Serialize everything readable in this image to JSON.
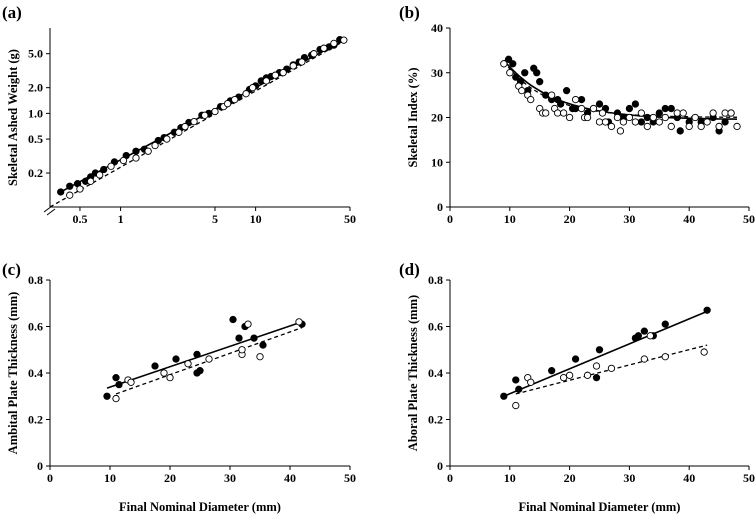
{
  "figure": {
    "shared_xlabel_bottom": "Final Nominal Diameter (mm)"
  },
  "chart_data": [
    {
      "panel": "(a)",
      "type": "scatter",
      "ylabel": "Skeletal Ashed Weight (g)",
      "xscale": "log",
      "yscale": "log",
      "xlim": [
        0.3,
        50
      ],
      "ylim": [
        0.08,
        10
      ],
      "xticks": [
        "0.5",
        "1",
        "5",
        "10",
        "50"
      ],
      "xtick_values": [
        0.5,
        1,
        5,
        10,
        50
      ],
      "yticks": [
        "0.2",
        "0.5",
        "1.0",
        "2.0",
        "5.0"
      ],
      "ytick_values": [
        0.2,
        0.5,
        1.0,
        2.0,
        5.0
      ],
      "trend_solid": [
        [
          0.36,
          0.12
        ],
        [
          45,
          7.2
        ]
      ],
      "trend_dashed": [
        [
          0.3,
          0.08
        ],
        [
          45,
          7.0
        ]
      ],
      "series": [
        {
          "marker": "filled",
          "points": [
            [
              0.36,
              0.12
            ],
            [
              0.42,
              0.14
            ],
            [
              0.48,
              0.15
            ],
            [
              0.55,
              0.16
            ],
            [
              0.6,
              0.18
            ],
            [
              0.65,
              0.2
            ],
            [
              0.75,
              0.22
            ],
            [
              0.9,
              0.27
            ],
            [
              1.1,
              0.32
            ],
            [
              1.3,
              0.36
            ],
            [
              1.5,
              0.38
            ],
            [
              1.9,
              0.48
            ],
            [
              2.1,
              0.52
            ],
            [
              2.5,
              0.6
            ],
            [
              2.8,
              0.68
            ],
            [
              3.2,
              0.78
            ],
            [
              4.0,
              0.95
            ],
            [
              4.5,
              1.0
            ],
            [
              5.5,
              1.2
            ],
            [
              6.5,
              1.4
            ],
            [
              7.5,
              1.55
            ],
            [
              9,
              1.9
            ],
            [
              10,
              2.1
            ],
            [
              11,
              2.4
            ],
            [
              12,
              2.6
            ],
            [
              13,
              2.7
            ],
            [
              15,
              3.0
            ],
            [
              17,
              3.3
            ],
            [
              19,
              3.7
            ],
            [
              21,
              4.0
            ],
            [
              23,
              4.5
            ],
            [
              26,
              4.8
            ],
            [
              30,
              5.6
            ],
            [
              35,
              6.0
            ],
            [
              38,
              6.3
            ],
            [
              42,
              7.3
            ]
          ]
        },
        {
          "marker": "open",
          "points": [
            [
              0.42,
              0.11
            ],
            [
              0.5,
              0.13
            ],
            [
              0.6,
              0.16
            ],
            [
              0.7,
              0.19
            ],
            [
              0.85,
              0.24
            ],
            [
              1.05,
              0.28
            ],
            [
              1.3,
              0.3
            ],
            [
              1.6,
              0.36
            ],
            [
              1.8,
              0.42
            ],
            [
              2.2,
              0.5
            ],
            [
              2.7,
              0.6
            ],
            [
              3.0,
              0.7
            ],
            [
              3.5,
              0.8
            ],
            [
              4.2,
              0.95
            ],
            [
              5.0,
              1.05
            ],
            [
              5.8,
              1.2
            ],
            [
              6.2,
              1.3
            ],
            [
              7,
              1.45
            ],
            [
              8.5,
              1.7
            ],
            [
              9.5,
              2.0
            ],
            [
              12,
              2.4
            ],
            [
              14,
              2.8
            ],
            [
              16,
              3.0
            ],
            [
              19,
              3.6
            ],
            [
              22,
              4.0
            ],
            [
              27,
              5.0
            ],
            [
              32,
              5.8
            ],
            [
              38,
              6.6
            ],
            [
              45,
              7.2
            ]
          ]
        }
      ]
    },
    {
      "panel": "(b)",
      "type": "scatter",
      "ylabel": "Skeletal Index (%)",
      "xlim": [
        0,
        50
      ],
      "ylim": [
        0,
        40
      ],
      "xticks": [
        "0",
        "10",
        "20",
        "30",
        "40",
        "50"
      ],
      "xtick_values": [
        0,
        10,
        20,
        30,
        40,
        50
      ],
      "yticks": [
        "0",
        "10",
        "20",
        "30",
        "40"
      ],
      "ytick_values": [
        0,
        10,
        20,
        30,
        40
      ],
      "trend_solid_curve": {
        "x0": 9,
        "x1": 48,
        "y_inf": 19.5,
        "amp": 13.3,
        "decay": 0.12
      },
      "trend_dashed_curve": {
        "x0": 9,
        "x1": 48,
        "y_inf": 20.0,
        "amp": 12.5,
        "decay": 0.14
      },
      "series": [
        {
          "marker": "filled",
          "points": [
            [
              9.8,
              33
            ],
            [
              10.5,
              32
            ],
            [
              11,
              29
            ],
            [
              11.8,
              28
            ],
            [
              12.5,
              30
            ],
            [
              13,
              26
            ],
            [
              14,
              31
            ],
            [
              14.5,
              30
            ],
            [
              15,
              28
            ],
            [
              16,
              25
            ],
            [
              17,
              24
            ],
            [
              18,
              24
            ],
            [
              18.5,
              23
            ],
            [
              19.5,
              26
            ],
            [
              20.5,
              22
            ],
            [
              21,
              22
            ],
            [
              22,
              24
            ],
            [
              23,
              21
            ],
            [
              24,
              22
            ],
            [
              25,
              23
            ],
            [
              26,
              22
            ],
            [
              26.5,
              19
            ],
            [
              28,
              21
            ],
            [
              29,
              20
            ],
            [
              30,
              22
            ],
            [
              31,
              23
            ],
            [
              32,
              19
            ],
            [
              33,
              20
            ],
            [
              34,
              19
            ],
            [
              35,
              21
            ],
            [
              36,
              22
            ],
            [
              37,
              22
            ],
            [
              38,
              20
            ],
            [
              38.5,
              17
            ],
            [
              40,
              19
            ],
            [
              42,
              19
            ],
            [
              44,
              20
            ],
            [
              45,
              17
            ],
            [
              46,
              19
            ],
            [
              47,
              21
            ]
          ]
        },
        {
          "marker": "open",
          "points": [
            [
              9,
              32
            ],
            [
              10,
              30
            ],
            [
              11.5,
              27
            ],
            [
              12,
              26
            ],
            [
              13,
              25
            ],
            [
              13.5,
              24
            ],
            [
              15,
              22
            ],
            [
              15.5,
              21
            ],
            [
              16,
              21
            ],
            [
              17,
              25
            ],
            [
              17.5,
              22
            ],
            [
              18,
              21
            ],
            [
              19,
              21
            ],
            [
              20,
              20
            ],
            [
              21,
              24
            ],
            [
              22,
              22
            ],
            [
              22.5,
              20
            ],
            [
              23,
              20
            ],
            [
              24,
              22
            ],
            [
              25,
              19
            ],
            [
              25.5,
              21
            ],
            [
              26,
              19
            ],
            [
              27,
              18
            ],
            [
              28,
              20
            ],
            [
              28.5,
              17
            ],
            [
              29,
              19
            ],
            [
              30,
              20
            ],
            [
              31,
              19
            ],
            [
              32,
              21
            ],
            [
              33,
              18
            ],
            [
              34,
              20
            ],
            [
              35,
              19
            ],
            [
              36,
              20
            ],
            [
              37,
              18
            ],
            [
              38,
              21
            ],
            [
              39,
              21
            ],
            [
              40,
              18
            ],
            [
              41,
              20
            ],
            [
              42,
              18
            ],
            [
              43,
              19
            ],
            [
              44,
              21
            ],
            [
              45,
              18
            ],
            [
              46,
              21
            ],
            [
              47,
              21
            ],
            [
              48,
              18
            ]
          ]
        }
      ]
    },
    {
      "panel": "(c)",
      "type": "scatter",
      "ylabel": "Ambital Plate Thickness (mm)",
      "xlabel": "Final Nominal Diameter (mm)",
      "xlim": [
        0,
        50
      ],
      "ylim": [
        0,
        0.8
      ],
      "xticks": [
        "0",
        "10",
        "20",
        "30",
        "40",
        "50"
      ],
      "xtick_values": [
        0,
        10,
        20,
        30,
        40,
        50
      ],
      "yticks": [
        "0",
        "0.2",
        "0.4",
        "0.6",
        "0.8"
      ],
      "ytick_values": [
        0,
        0.2,
        0.4,
        0.6,
        0.8
      ],
      "trend_solid": [
        [
          9.5,
          0.335
        ],
        [
          42,
          0.62
        ]
      ],
      "trend_dashed": [
        [
          11,
          0.31
        ],
        [
          42,
          0.595
        ]
      ],
      "series": [
        {
          "marker": "filled",
          "points": [
            [
              9.5,
              0.3
            ],
            [
              11,
              0.38
            ],
            [
              11.5,
              0.35
            ],
            [
              17.5,
              0.43
            ],
            [
              21,
              0.46
            ],
            [
              24.5,
              0.48
            ],
            [
              24.5,
              0.4
            ],
            [
              25,
              0.41
            ],
            [
              30.5,
              0.63
            ],
            [
              31.5,
              0.55
            ],
            [
              32.5,
              0.6
            ],
            [
              34,
              0.55
            ],
            [
              35.5,
              0.52
            ],
            [
              42,
              0.61
            ]
          ]
        },
        {
          "marker": "open",
          "points": [
            [
              11,
              0.29
            ],
            [
              13,
              0.37
            ],
            [
              13.5,
              0.36
            ],
            [
              19,
              0.4
            ],
            [
              20,
              0.38
            ],
            [
              23,
              0.44
            ],
            [
              26.5,
              0.46
            ],
            [
              32,
              0.48
            ],
            [
              32,
              0.5
            ],
            [
              33,
              0.61
            ],
            [
              35,
              0.47
            ],
            [
              41.5,
              0.62
            ]
          ]
        }
      ]
    },
    {
      "panel": "(d)",
      "type": "scatter",
      "ylabel": "Aboral Plate Thickness (mm)",
      "xlabel": "Final Nominal Diameter (mm)",
      "xlim": [
        0,
        50
      ],
      "ylim": [
        0,
        0.8
      ],
      "xticks": [
        "0",
        "10",
        "20",
        "30",
        "40",
        "50"
      ],
      "xtick_values": [
        0,
        10,
        20,
        30,
        40,
        50
      ],
      "yticks": [
        "0",
        "0.2",
        "0.4",
        "0.6",
        "0.8"
      ],
      "ytick_values": [
        0,
        0.2,
        0.4,
        0.6,
        0.8
      ],
      "trend_solid": [
        [
          9,
          0.3
        ],
        [
          43,
          0.665
        ]
      ],
      "trend_dashed": [
        [
          11,
          0.31
        ],
        [
          43,
          0.52
        ]
      ],
      "series": [
        {
          "marker": "filled",
          "points": [
            [
              9,
              0.3
            ],
            [
              11,
              0.37
            ],
            [
              11.5,
              0.33
            ],
            [
              17,
              0.41
            ],
            [
              21,
              0.46
            ],
            [
              24.5,
              0.38
            ],
            [
              25,
              0.5
            ],
            [
              31,
              0.55
            ],
            [
              31.5,
              0.56
            ],
            [
              32.5,
              0.58
            ],
            [
              34,
              0.56
            ],
            [
              36,
              0.61
            ],
            [
              43,
              0.67
            ]
          ]
        },
        {
          "marker": "open",
          "points": [
            [
              11,
              0.26
            ],
            [
              13,
              0.38
            ],
            [
              13.5,
              0.36
            ],
            [
              19,
              0.38
            ],
            [
              20,
              0.39
            ],
            [
              23,
              0.39
            ],
            [
              24.5,
              0.43
            ],
            [
              27,
              0.42
            ],
            [
              32.5,
              0.46
            ],
            [
              33.5,
              0.56
            ],
            [
              36,
              0.47
            ],
            [
              42.5,
              0.49
            ]
          ]
        }
      ]
    }
  ]
}
